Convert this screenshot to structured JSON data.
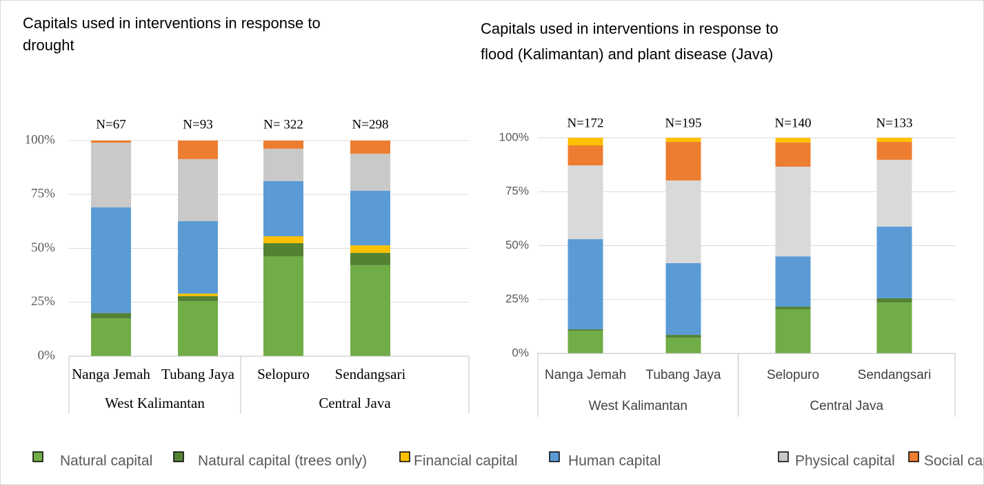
{
  "chart_data": [
    {
      "type": "bar",
      "stacked": true,
      "title": [
        "Capitals used in interventions in response to",
        "drought"
      ],
      "categories": [
        "Nanga Jemah",
        "Tubang Jaya",
        "Selopuro",
        "Sendangsari"
      ],
      "annotations": [
        "N=67",
        "N=93",
        "N= 322",
        "N=298"
      ],
      "groups": [
        {
          "label": "West Kalimantan",
          "span": 2
        },
        {
          "label": "Central Java",
          "span": 2
        }
      ],
      "series": [
        {
          "name": "Natural capital",
          "color": "#70ad47",
          "values": [
            17.5,
            25.5,
            46.3,
            42.2
          ]
        },
        {
          "name": "Natural capital (trees only)",
          "color": "#548235",
          "values": [
            2.5,
            2.3,
            6.1,
            5.7
          ]
        },
        {
          "name": "Financial capital",
          "color": "#ffc000",
          "values": [
            0,
            1.2,
            3.2,
            3.5
          ]
        },
        {
          "name": "Human capital",
          "color": "#5b9bd5",
          "values": [
            49,
            33.6,
            25.6,
            25.3
          ]
        },
        {
          "name": "Physical capital",
          "color": "#c9c9c9",
          "values": [
            30,
            28.8,
            15,
            17.2
          ]
        },
        {
          "name": "Social capital",
          "color": "#ed7d31",
          "values": [
            1,
            8.6,
            3.8,
            6.1
          ]
        }
      ],
      "ylim": [
        0,
        100
      ],
      "yticks": [
        {
          "value": 0,
          "label": "0%"
        },
        {
          "value": 25,
          "label": "25%"
        },
        {
          "value": 50,
          "label": "50%"
        },
        {
          "value": 75,
          "label": "75%"
        },
        {
          "value": 100,
          "label": "100%"
        }
      ],
      "grid": true
    },
    {
      "type": "bar",
      "stacked": true,
      "title": [
        "Capitals used  in interventions in response to",
        "flood (Kalimantan) and plant disease (Java)"
      ],
      "categories": [
        "Nanga Jemah",
        "Tubang Jaya",
        "Selopuro",
        "Sendangsari"
      ],
      "annotations": [
        "N=172",
        "N=195",
        "N=140",
        "N=133"
      ],
      "groups": [
        {
          "label": "West Kalimantan",
          "span": 2
        },
        {
          "label": "Central Java",
          "span": 2
        }
      ],
      "series": [
        {
          "name": "Natural capital",
          "color": "#70ad47",
          "values": [
            10.5,
            7.3,
            20.4,
            23.6
          ]
        },
        {
          "name": "Natural capital (trees only)",
          "color": "#548235",
          "values": [
            0.7,
            1.3,
            1.3,
            2
          ]
        },
        {
          "name": "Human capital",
          "color": "#5b9bd5",
          "values": [
            41.8,
            33.3,
            23.3,
            33.2
          ]
        },
        {
          "name": "Physical capital",
          "color": "#d9d9d9",
          "values": [
            34.2,
            38.3,
            41.6,
            31
          ]
        },
        {
          "name": "Social capital",
          "color": "#ed7d31",
          "values": [
            9.3,
            17.9,
            11.2,
            8.3
          ]
        },
        {
          "name": "Financial capital",
          "color": "#ffc000",
          "values": [
            3.5,
            1.9,
            2.2,
            1.9
          ]
        }
      ],
      "ylim": [
        0,
        100
      ],
      "yticks": [
        {
          "value": 0,
          "label": "0%"
        },
        {
          "value": 25,
          "label": "25%"
        },
        {
          "value": 50,
          "label": "50%"
        },
        {
          "value": 75,
          "label": "75%"
        },
        {
          "value": 100,
          "label": "100%"
        }
      ],
      "grid": true
    }
  ]
}
